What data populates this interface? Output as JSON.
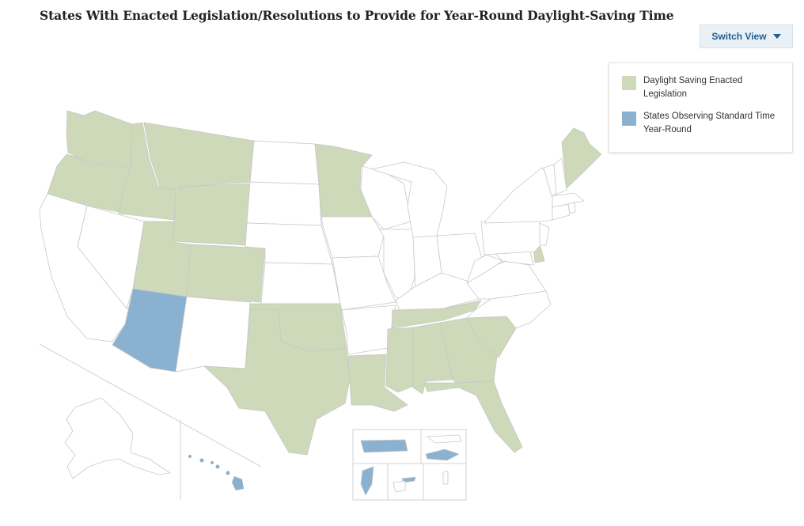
{
  "page": {
    "title": "States With Enacted Legislation/Resolutions to Provide for Year-Round Daylight-Saving Time"
  },
  "controls": {
    "switch_view_label": "Switch View"
  },
  "colors": {
    "dst_enacted": "#cdd9b8",
    "standard_time": "#8ab2d0",
    "none": "#ffffff",
    "border": "#c8c8c8"
  },
  "legend": {
    "items": [
      {
        "label": "Daylight Saving Enacted Legislation",
        "category": "dst_enacted"
      },
      {
        "label": "States Observing Standard Time Year-Round",
        "category": "standard_time"
      }
    ]
  },
  "map_data": {
    "dst_enacted_states": [
      "WA",
      "OR",
      "ID",
      "MT",
      "WY",
      "UT",
      "CO",
      "MN",
      "ME",
      "DE",
      "TN",
      "OK",
      "TX",
      "LA",
      "MS",
      "AL",
      "GA",
      "SC",
      "FL"
    ],
    "standard_time_states": [
      "AZ",
      "HI",
      "PR",
      "VI",
      "GU",
      "AS"
    ]
  }
}
